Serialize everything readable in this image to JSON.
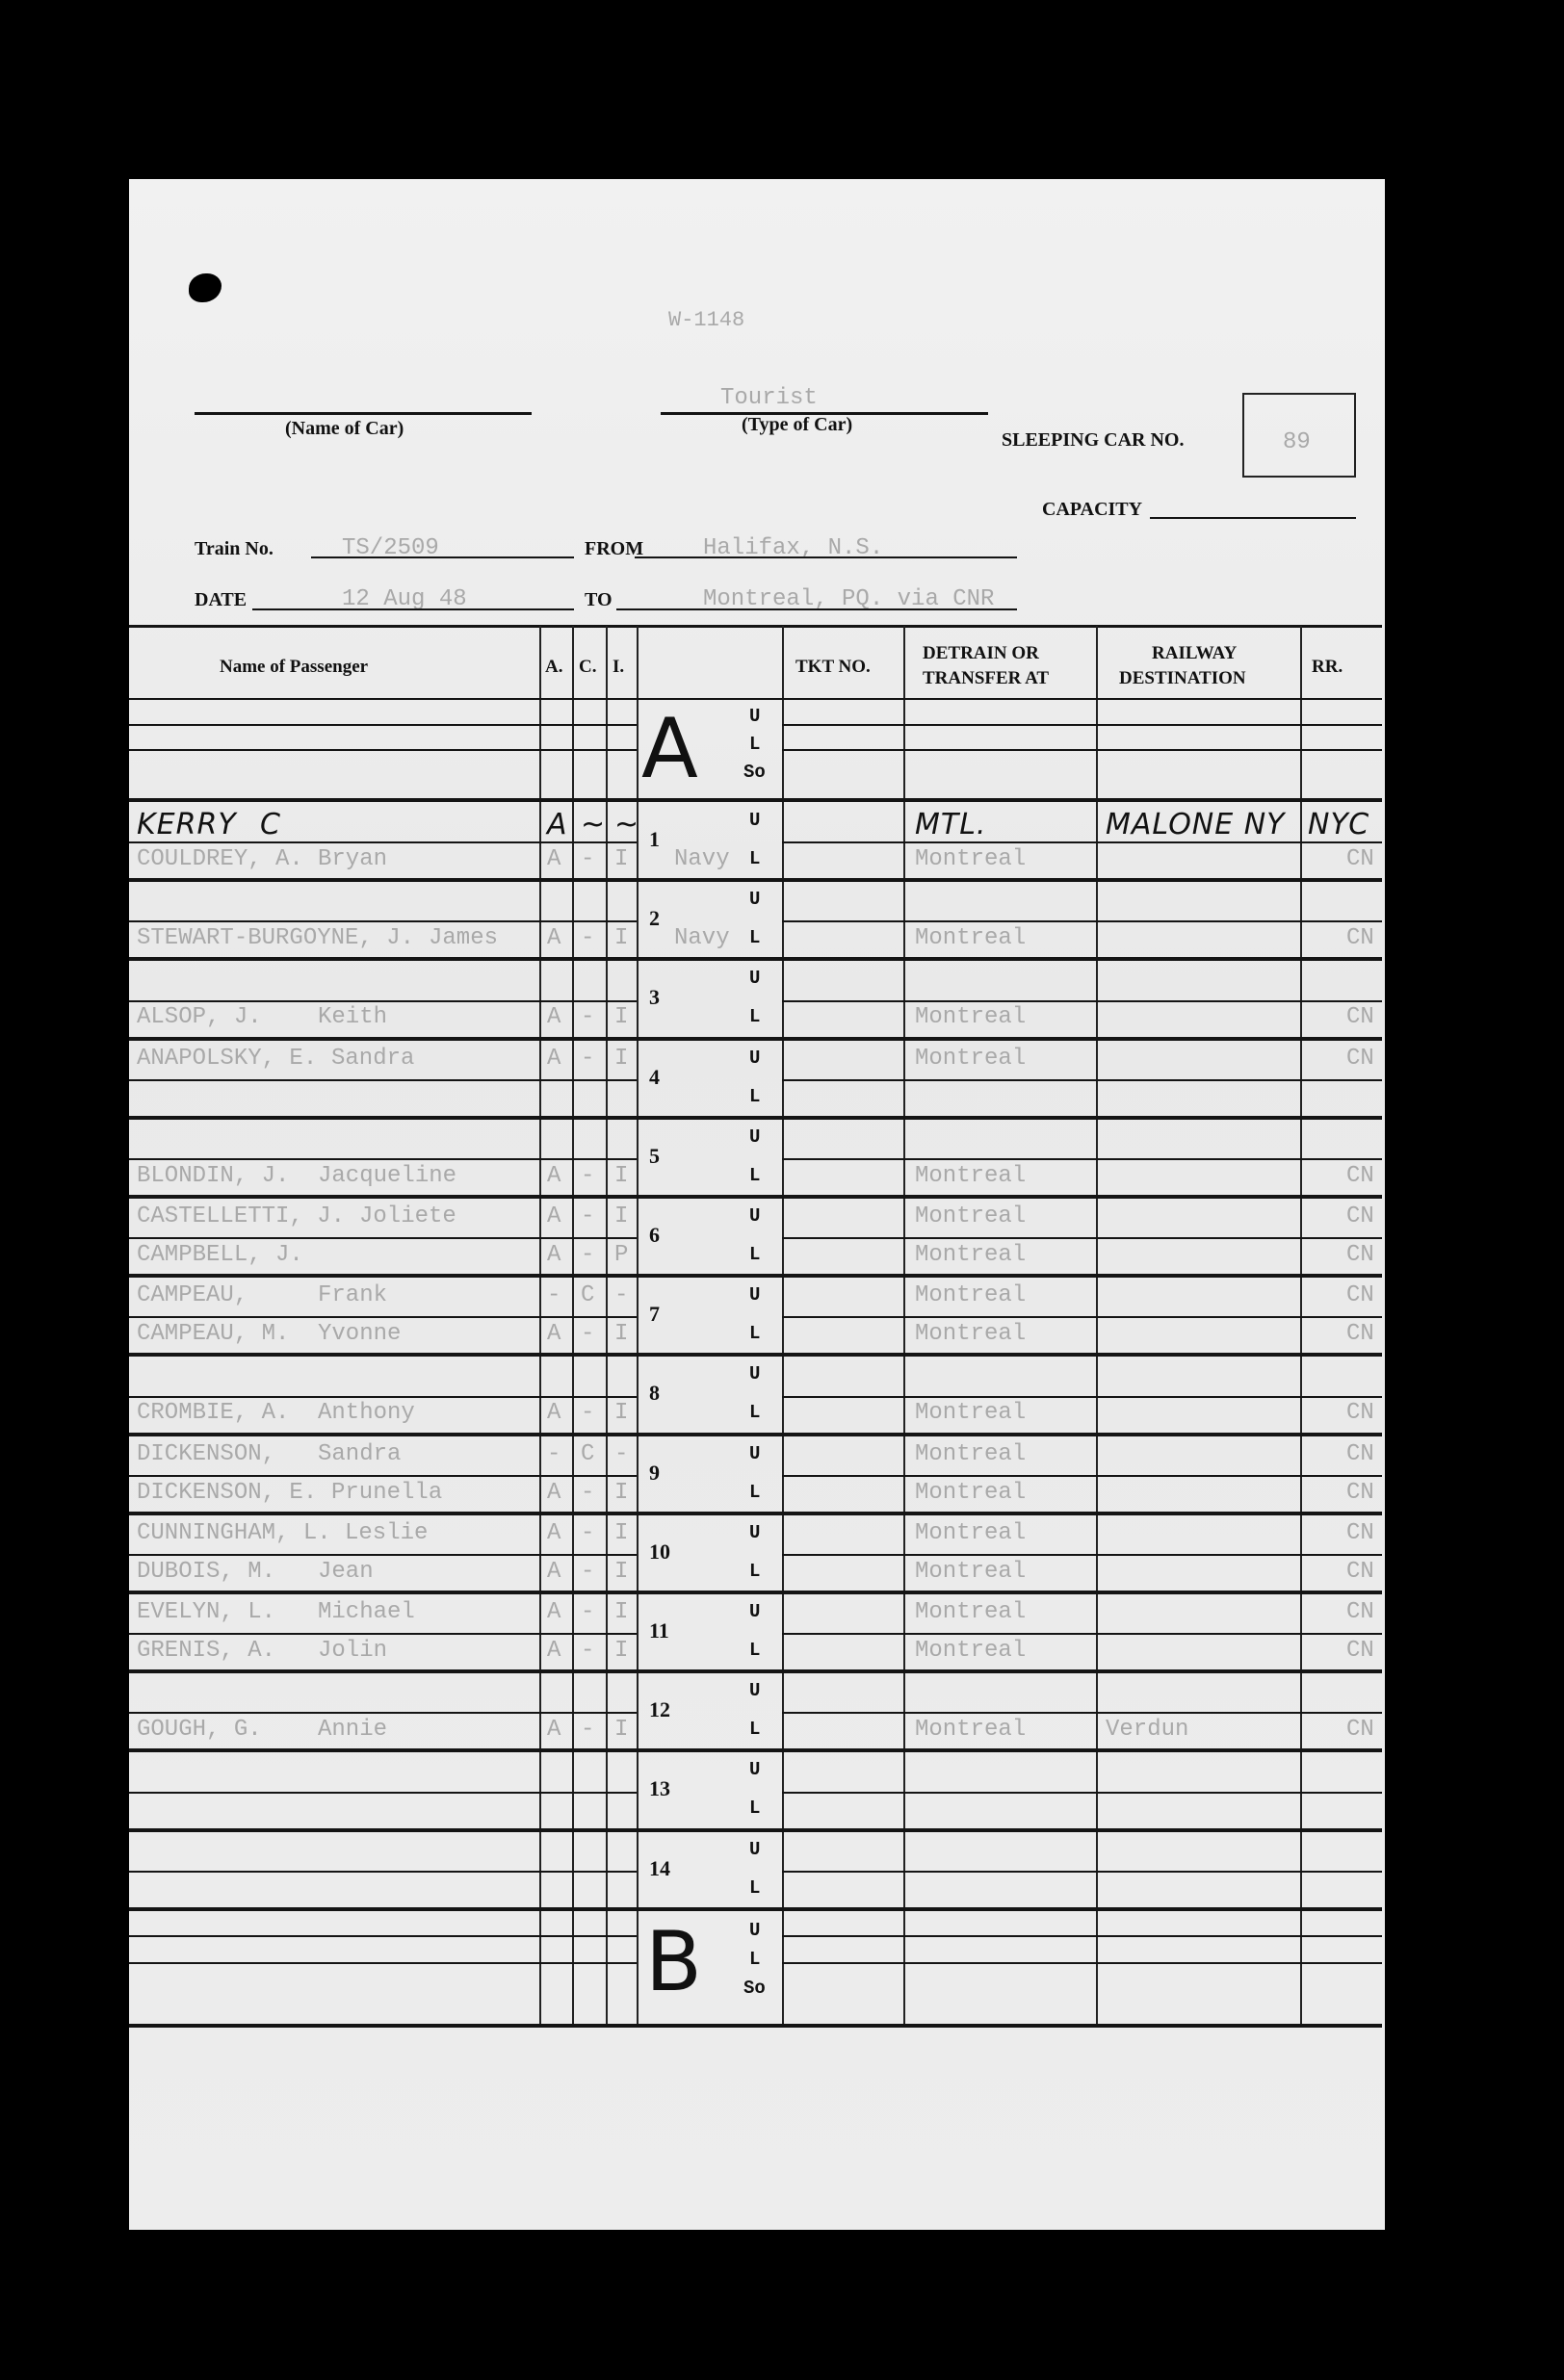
{
  "document": {
    "form_number": "W-1148",
    "name_of_car_label": "(Name of Car)",
    "name_of_car_value": "",
    "type_of_car_label": "(Type of Car)",
    "type_of_car_value": "Tourist",
    "sleeping_car_label": "SLEEPING CAR NO.",
    "sleeping_car_value": "89",
    "capacity_label": "CAPACITY",
    "capacity_value": "",
    "train_label": "Train No.",
    "train_value": "TS/2509",
    "from_label": "FROM",
    "from_value": "Halifax, N.S.",
    "date_label": "DATE",
    "date_value": "12 Aug 48",
    "to_label": "TO",
    "to_value": "Montreal, PQ.   via CNR"
  },
  "table": {
    "headers": {
      "name": "Name of Passenger",
      "a": "A.",
      "c": "C.",
      "i": "I.",
      "tkt": "TKT NO.",
      "detrain_1": "DETRAIN OR",
      "detrain_2": "TRANSFER AT",
      "railway_1": "RAILWAY",
      "railway_2": "DESTINATION",
      "rr": "RR."
    },
    "section_a": {
      "letter": "A",
      "marks": [
        "U",
        "L",
        "So"
      ]
    },
    "section_b": {
      "letter": "B",
      "marks": [
        "U",
        "L",
        "So"
      ]
    },
    "berths": [
      {
        "number": "1",
        "upper": {
          "name": "KERRY",
          "given": "C",
          "a": "A",
          "c": "~",
          "i": "~",
          "note": "",
          "detrain": "MTL.",
          "railway": "MALONE NY",
          "rr": "NYC",
          "handwritten": true
        },
        "lower": {
          "name": "COULDREY, A.",
          "given": "Bryan",
          "a": "A",
          "c": "-",
          "i": "I",
          "note": "Navy",
          "detrain": "Montreal",
          "railway": "",
          "rr": "CN"
        }
      },
      {
        "number": "2",
        "upper": null,
        "lower": {
          "name": "STEWART-BURGOYNE, J.",
          "given": "James",
          "a": "A",
          "c": "-",
          "i": "I",
          "note": "Navy",
          "detrain": "Montreal",
          "railway": "",
          "rr": "CN"
        }
      },
      {
        "number": "3",
        "upper": null,
        "lower": {
          "name": "ALSOP, J.",
          "given": "Keith",
          "a": "A",
          "c": "-",
          "i": "I",
          "note": "",
          "detrain": "Montreal",
          "railway": "",
          "rr": "CN"
        }
      },
      {
        "number": "4",
        "upper": {
          "name": "ANAPOLSKY, E.",
          "given": "Sandra",
          "a": "A",
          "c": "-",
          "i": "I",
          "note": "",
          "detrain": "Montreal",
          "railway": "",
          "rr": "CN"
        },
        "lower": null
      },
      {
        "number": "5",
        "upper": null,
        "lower": {
          "name": "BLONDIN, J.",
          "given": "Jacqueline",
          "a": "A",
          "c": "-",
          "i": "I",
          "note": "",
          "detrain": "Montreal",
          "railway": "",
          "rr": "CN"
        }
      },
      {
        "number": "6",
        "upper": {
          "name": "CASTELLETTI, J.",
          "given": "Joliete",
          "a": "A",
          "c": "-",
          "i": "I",
          "note": "",
          "detrain": "Montreal",
          "railway": "",
          "rr": "CN"
        },
        "lower": {
          "name": "CAMPBELL, J.",
          "given": "",
          "a": "A",
          "c": "-",
          "i": "P",
          "note": "",
          "detrain": "Montreal",
          "railway": "",
          "rr": "CN"
        }
      },
      {
        "number": "7",
        "upper": {
          "name": "CAMPEAU,",
          "given": "Frank",
          "a": "-",
          "c": "C",
          "i": "-",
          "note": "",
          "detrain": "Montreal",
          "railway": "",
          "rr": "CN"
        },
        "lower": {
          "name": "CAMPEAU, M.",
          "given": "Yvonne",
          "a": "A",
          "c": "-",
          "i": "I",
          "note": "",
          "detrain": "Montreal",
          "railway": "",
          "rr": "CN"
        }
      },
      {
        "number": "8",
        "upper": null,
        "lower": {
          "name": "CROMBIE, A.",
          "given": "Anthony",
          "a": "A",
          "c": "-",
          "i": "I",
          "note": "",
          "detrain": "Montreal",
          "railway": "",
          "rr": "CN"
        }
      },
      {
        "number": "9",
        "upper": {
          "name": "DICKENSON,",
          "given": "Sandra",
          "a": "-",
          "c": "C",
          "i": "-",
          "note": "",
          "detrain": "Montreal",
          "railway": "",
          "rr": "CN"
        },
        "lower": {
          "name": "DICKENSON, E.",
          "given": "Prunella",
          "a": "A",
          "c": "-",
          "i": "I",
          "note": "",
          "detrain": "Montreal",
          "railway": "",
          "rr": "CN"
        }
      },
      {
        "number": "10",
        "upper": {
          "name": "CUNNINGHAM, L.",
          "given": "Leslie",
          "a": "A",
          "c": "-",
          "i": "I",
          "note": "",
          "detrain": "Montreal",
          "railway": "",
          "rr": "CN"
        },
        "lower": {
          "name": "DUBOIS, M.",
          "given": "Jean",
          "a": "A",
          "c": "-",
          "i": "I",
          "note": "",
          "detrain": "Montreal",
          "railway": "",
          "rr": "CN"
        }
      },
      {
        "number": "11",
        "upper": {
          "name": "EVELYN, L.",
          "given": "Michael",
          "a": "A",
          "c": "-",
          "i": "I",
          "note": "",
          "detrain": "Montreal",
          "railway": "",
          "rr": "CN"
        },
        "lower": {
          "name": "GRENIS, A.",
          "given": "Jolin",
          "a": "A",
          "c": "-",
          "i": "I",
          "note": "",
          "detrain": "Montreal",
          "railway": "",
          "rr": "CN"
        }
      },
      {
        "number": "12",
        "upper": null,
        "lower": {
          "name": "GOUGH, G.",
          "given": "Annie",
          "a": "A",
          "c": "-",
          "i": "I",
          "note": "",
          "detrain": "Montreal",
          "railway": "Verdun",
          "rr": "CN"
        }
      },
      {
        "number": "13",
        "upper": null,
        "lower": null
      },
      {
        "number": "14",
        "upper": null,
        "lower": null
      }
    ],
    "berth_marks": [
      "U",
      "L"
    ]
  }
}
